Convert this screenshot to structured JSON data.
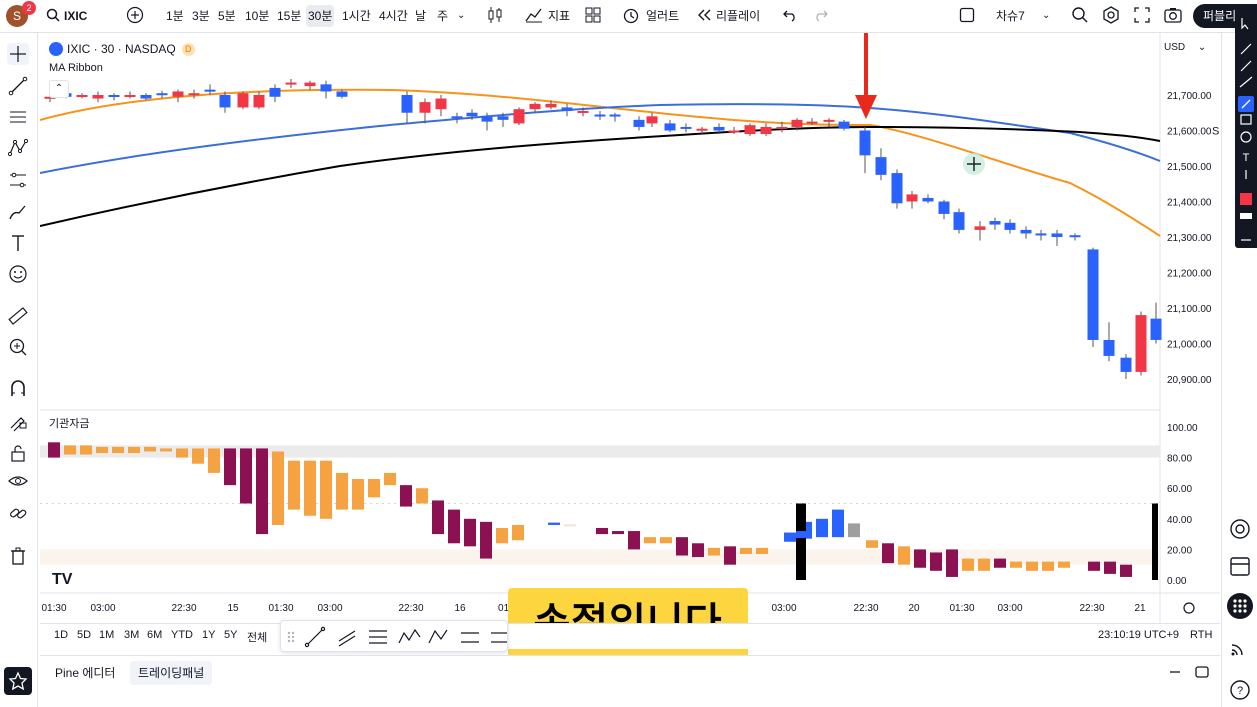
{
  "topbar": {
    "avatar_letter": "S",
    "avatar_badge": "2",
    "symbol": "IXIC",
    "timeframes": [
      "1분",
      "3분",
      "5분",
      "10분",
      "15분",
      "30분",
      "1시간",
      "4시간",
      "날",
      "주"
    ],
    "active_timeframe": "30분",
    "indicators_label": "지표",
    "alert_label": "얼러트",
    "replay_label": "리플레이",
    "layout_name": "차슈7",
    "trade_label": "퍼블리"
  },
  "chart": {
    "title": "IXIC · 30 · NASDAQ",
    "badge": "D",
    "indicator_name": "MA Ribbon",
    "currency": "USD",
    "pane2_name": "기관자금",
    "price_ticks": [
      "21,700.00",
      "21,600.00",
      "21,500.00",
      "21,400.00",
      "21,300.00",
      "21,200.00",
      "21,100.00",
      "21,000.00",
      "20,900.00"
    ],
    "osc_ticks": [
      "100.00",
      "80.00",
      "60.00",
      "40.00",
      "20.00",
      "0.00"
    ],
    "time_labels": [
      "01:30",
      "03:00",
      "22:30",
      "15",
      "01:30",
      "03:00",
      "22:30",
      "16",
      "01:",
      "03:00",
      "22:30",
      "20",
      "01:30",
      "03:00",
      "22:30",
      "21"
    ],
    "right_axis_partial": "S",
    "watermark": "TV",
    "colors": {
      "up": "#f23645",
      "down": "#2962ff",
      "ma_fast": "#f7931a",
      "ma_mid": "#3b6fd8",
      "ma_slow": "#000000",
      "osc_orange": "#f5a342",
      "osc_purple": "#8b1152",
      "arrow": "#e8291c"
    }
  },
  "chart_data": {
    "type": "candlestick",
    "price_axis": {
      "min": 20900,
      "max": 21700
    },
    "oscillator_axis": {
      "min": 0,
      "max": 100
    }
  },
  "rangebar": {
    "ranges": [
      "1D",
      "5D",
      "1M",
      "3M",
      "6M",
      "YTD",
      "1Y",
      "5Y",
      "전체"
    ],
    "clock": "23:10:19 UTC+9",
    "session": "RTH"
  },
  "subtitle": "손절입니다",
  "bottompanel": {
    "tabs": [
      "Pine 에디터",
      "트레이딩패널"
    ]
  }
}
